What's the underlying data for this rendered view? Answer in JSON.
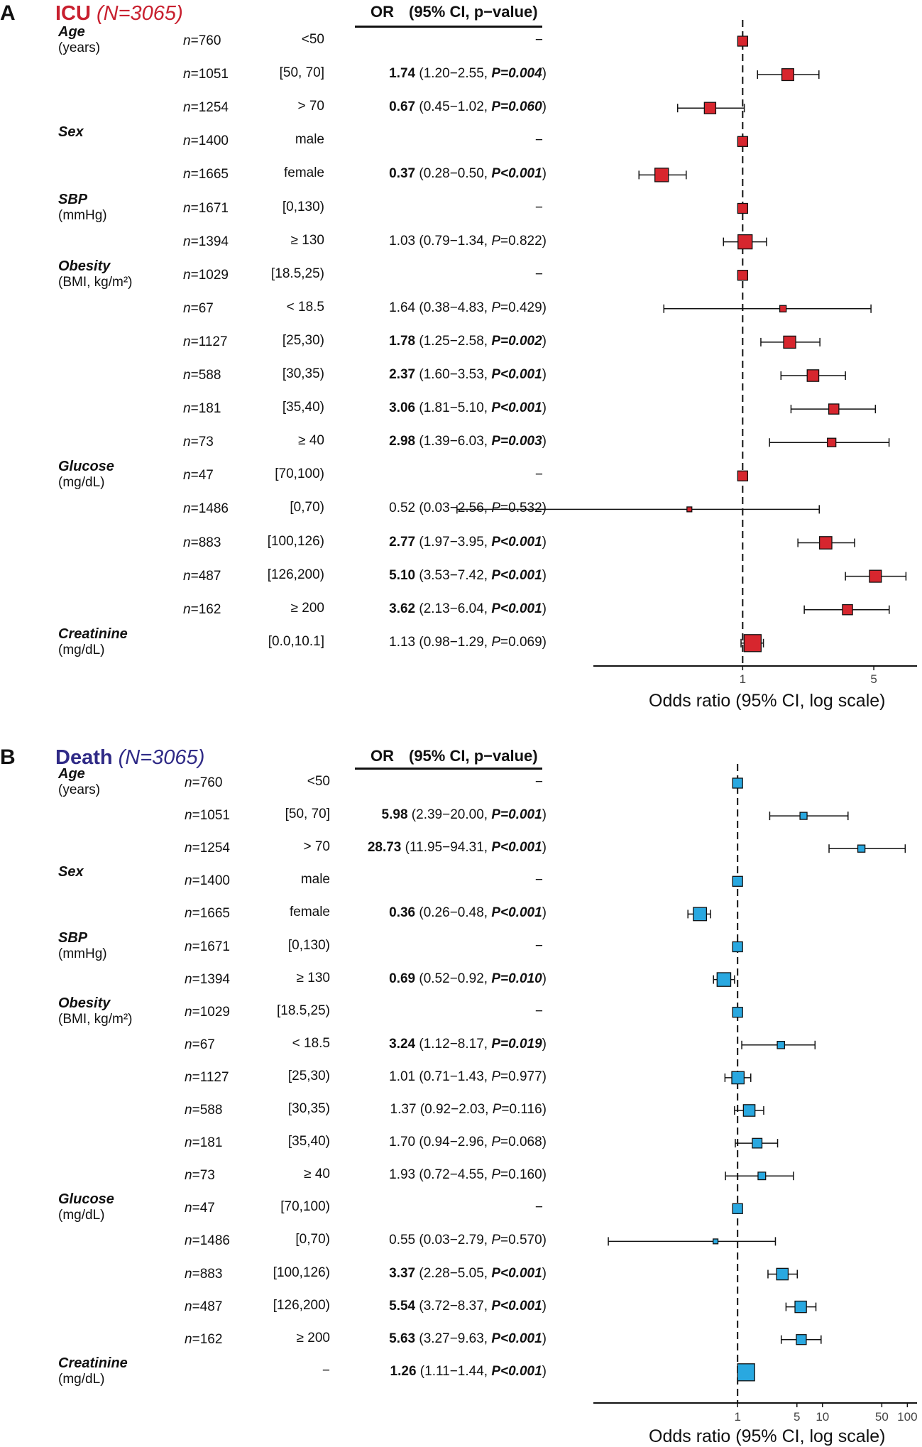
{
  "chart_data": [
    {
      "type": "forest",
      "panel_label": "A",
      "title": "ICU",
      "title_n": "(N=3065)",
      "title_color": "#c8202f",
      "marker_color": "#d7262e",
      "header_or": "OR",
      "header_ci": "(95% CI, p−value)",
      "xlabel": "Odds ratio (95% CI, log scale)",
      "xscale": "log",
      "xlim": [
        0.16,
        8.5
      ],
      "reference_line": 1,
      "ticks": [
        {
          "value": 1,
          "label": "1"
        },
        {
          "value": 5,
          "label": "5"
        }
      ],
      "variables": [
        {
          "name": "Age",
          "unit": "(years)"
        },
        {
          "name": "Sex",
          "unit": ""
        },
        {
          "name": "SBP",
          "unit": "(mmHg)"
        },
        {
          "name": "Obesity",
          "unit": "(BMI, kg/m²)"
        },
        {
          "name": "Glucose",
          "unit": "(mg/dL)"
        },
        {
          "name": "Creatinine",
          "unit": "(mg/dL)"
        }
      ],
      "rows": [
        {
          "var": 0,
          "n": "760",
          "level": "<50",
          "or": null,
          "lo": null,
          "hi": null,
          "p": null,
          "bold": false,
          "p_op": "="
        },
        {
          "var": 0,
          "n": "1051",
          "level": "[50, 70]",
          "or": 1.74,
          "lo": 1.2,
          "hi": 2.55,
          "p": "0.004",
          "bold": true,
          "p_op": "="
        },
        {
          "var": 0,
          "n": "1254",
          "level": "> 70",
          "or": 0.67,
          "lo": 0.45,
          "hi": 1.02,
          "p": "0.060",
          "bold": true,
          "p_op": "="
        },
        {
          "var": 1,
          "n": "1400",
          "level": "male",
          "or": null,
          "lo": null,
          "hi": null,
          "p": null,
          "bold": false,
          "p_op": "="
        },
        {
          "var": 1,
          "n": "1665",
          "level": "female",
          "or": 0.37,
          "lo": 0.28,
          "hi": 0.5,
          "p": "0.001",
          "bold": true,
          "p_op": "<"
        },
        {
          "var": 2,
          "n": "1671",
          "level": "[0,130)",
          "or": null,
          "lo": null,
          "hi": null,
          "p": null,
          "bold": false,
          "p_op": "="
        },
        {
          "var": 2,
          "n": "1394",
          "level": "≥ 130",
          "or": 1.03,
          "lo": 0.79,
          "hi": 1.34,
          "p": "0.822",
          "bold": false,
          "p_op": "="
        },
        {
          "var": 3,
          "n": "1029",
          "level": "[18.5,25)",
          "or": null,
          "lo": null,
          "hi": null,
          "p": null,
          "bold": false,
          "p_op": "="
        },
        {
          "var": 3,
          "n": "67",
          "level": "< 18.5",
          "or": 1.64,
          "lo": 0.38,
          "hi": 4.83,
          "p": "0.429",
          "bold": false,
          "p_op": "="
        },
        {
          "var": 3,
          "n": "1127",
          "level": "[25,30)",
          "or": 1.78,
          "lo": 1.25,
          "hi": 2.58,
          "p": "0.002",
          "bold": true,
          "p_op": "="
        },
        {
          "var": 3,
          "n": "588",
          "level": "[30,35)",
          "or": 2.37,
          "lo": 1.6,
          "hi": 3.53,
          "p": "0.001",
          "bold": true,
          "p_op": "<"
        },
        {
          "var": 3,
          "n": "181",
          "level": "[35,40)",
          "or": 3.06,
          "lo": 1.81,
          "hi": 5.1,
          "p": "0.001",
          "bold": true,
          "p_op": "<"
        },
        {
          "var": 3,
          "n": "73",
          "level": "≥ 40",
          "or": 2.98,
          "lo": 1.39,
          "hi": 6.03,
          "p": "0.003",
          "bold": true,
          "p_op": "="
        },
        {
          "var": 4,
          "n": "47",
          "level": "[70,100)",
          "or": null,
          "lo": null,
          "hi": null,
          "p": null,
          "bold": false,
          "p_op": "="
        },
        {
          "var": 4,
          "n": "1486",
          "level": "[0,70)",
          "or": 0.52,
          "lo": 0.03,
          "hi": 2.56,
          "p": "0.532",
          "bold": false,
          "p_op": "="
        },
        {
          "var": 4,
          "n": "883",
          "level": "[100,126)",
          "or": 2.77,
          "lo": 1.97,
          "hi": 3.95,
          "p": "0.001",
          "bold": true,
          "p_op": "<"
        },
        {
          "var": 4,
          "n": "487",
          "level": "[126,200)",
          "or": 5.1,
          "lo": 3.53,
          "hi": 7.42,
          "p": "0.001",
          "bold": true,
          "p_op": "<"
        },
        {
          "var": 4,
          "n": "162",
          "level": "≥ 200",
          "or": 3.62,
          "lo": 2.13,
          "hi": 6.04,
          "p": "0.001",
          "bold": true,
          "p_op": "<"
        },
        {
          "var": 5,
          "n": "",
          "level": "[0.0,10.1]",
          "or": 1.13,
          "lo": 0.98,
          "hi": 1.29,
          "p": "0.069",
          "bold": false,
          "p_op": "="
        }
      ]
    },
    {
      "type": "forest",
      "panel_label": "B",
      "title": "Death",
      "title_n": "(N=3065)",
      "title_color": "#2f2a86",
      "marker_color": "#29a8e0",
      "header_or": "OR",
      "header_ci": "(95% CI, p−value)",
      "xlabel": "Odds ratio (95% CI, log scale)",
      "xscale": "log",
      "xlim": [
        0.02,
        130
      ],
      "reference_line": 1,
      "ticks": [
        {
          "value": 1,
          "label": "1"
        },
        {
          "value": 5,
          "label": "5"
        },
        {
          "value": 10,
          "label": "10"
        },
        {
          "value": 50,
          "label": "50"
        },
        {
          "value": 100,
          "label": "100"
        }
      ],
      "variables": [
        {
          "name": "Age",
          "unit": "(years)"
        },
        {
          "name": "Sex",
          "unit": ""
        },
        {
          "name": "SBP",
          "unit": "(mmHg)"
        },
        {
          "name": "Obesity",
          "unit": "(BMI, kg/m²)"
        },
        {
          "name": "Glucose",
          "unit": "(mg/dL)"
        },
        {
          "name": "Creatinine",
          "unit": "(mg/dL)"
        }
      ],
      "rows": [
        {
          "var": 0,
          "n": "760",
          "level": "<50",
          "or": null,
          "lo": null,
          "hi": null,
          "p": null,
          "bold": false,
          "p_op": "="
        },
        {
          "var": 0,
          "n": "1051",
          "level": "[50, 70]",
          "or": 5.98,
          "lo": 2.39,
          "hi": 20.0,
          "p": "0.001",
          "bold": true,
          "p_op": "="
        },
        {
          "var": 0,
          "n": "1254",
          "level": "> 70",
          "or": 28.73,
          "lo": 11.95,
          "hi": 94.31,
          "p": "0.001",
          "bold": true,
          "p_op": "<"
        },
        {
          "var": 1,
          "n": "1400",
          "level": "male",
          "or": null,
          "lo": null,
          "hi": null,
          "p": null,
          "bold": false,
          "p_op": "="
        },
        {
          "var": 1,
          "n": "1665",
          "level": "female",
          "or": 0.36,
          "lo": 0.26,
          "hi": 0.48,
          "p": "0.001",
          "bold": true,
          "p_op": "<"
        },
        {
          "var": 2,
          "n": "1671",
          "level": "[0,130)",
          "or": null,
          "lo": null,
          "hi": null,
          "p": null,
          "bold": false,
          "p_op": "="
        },
        {
          "var": 2,
          "n": "1394",
          "level": "≥ 130",
          "or": 0.69,
          "lo": 0.52,
          "hi": 0.92,
          "p": "0.010",
          "bold": true,
          "p_op": "="
        },
        {
          "var": 3,
          "n": "1029",
          "level": "[18.5,25)",
          "or": null,
          "lo": null,
          "hi": null,
          "p": null,
          "bold": false,
          "p_op": "="
        },
        {
          "var": 3,
          "n": "67",
          "level": "< 18.5",
          "or": 3.24,
          "lo": 1.12,
          "hi": 8.17,
          "p": "0.019",
          "bold": true,
          "p_op": "="
        },
        {
          "var": 3,
          "n": "1127",
          "level": "[25,30)",
          "or": 1.01,
          "lo": 0.71,
          "hi": 1.43,
          "p": "0.977",
          "bold": false,
          "p_op": "="
        },
        {
          "var": 3,
          "n": "588",
          "level": "[30,35)",
          "or": 1.37,
          "lo": 0.92,
          "hi": 2.03,
          "p": "0.116",
          "bold": false,
          "p_op": "="
        },
        {
          "var": 3,
          "n": "181",
          "level": "[35,40)",
          "or": 1.7,
          "lo": 0.94,
          "hi": 2.96,
          "p": "0.068",
          "bold": false,
          "p_op": "="
        },
        {
          "var": 3,
          "n": "73",
          "level": "≥ 40",
          "or": 1.93,
          "lo": 0.72,
          "hi": 4.55,
          "p": "0.160",
          "bold": false,
          "p_op": "="
        },
        {
          "var": 4,
          "n": "47",
          "level": "[70,100)",
          "or": null,
          "lo": null,
          "hi": null,
          "p": null,
          "bold": false,
          "p_op": "="
        },
        {
          "var": 4,
          "n": "1486",
          "level": "[0,70)",
          "or": 0.55,
          "lo": 0.03,
          "hi": 2.79,
          "p": "0.570",
          "bold": false,
          "p_op": "="
        },
        {
          "var": 4,
          "n": "883",
          "level": "[100,126)",
          "or": 3.37,
          "lo": 2.28,
          "hi": 5.05,
          "p": "0.001",
          "bold": true,
          "p_op": "<"
        },
        {
          "var": 4,
          "n": "487",
          "level": "[126,200)",
          "or": 5.54,
          "lo": 3.72,
          "hi": 8.37,
          "p": "0.001",
          "bold": true,
          "p_op": "<"
        },
        {
          "var": 4,
          "n": "162",
          "level": "≥ 200",
          "or": 5.63,
          "lo": 3.27,
          "hi": 9.63,
          "p": "0.001",
          "bold": true,
          "p_op": "<"
        },
        {
          "var": 5,
          "n": "",
          "level": "−",
          "or": 1.26,
          "lo": 1.11,
          "hi": 1.44,
          "p": "0.001",
          "bold": true,
          "p_op": "<"
        }
      ]
    }
  ]
}
